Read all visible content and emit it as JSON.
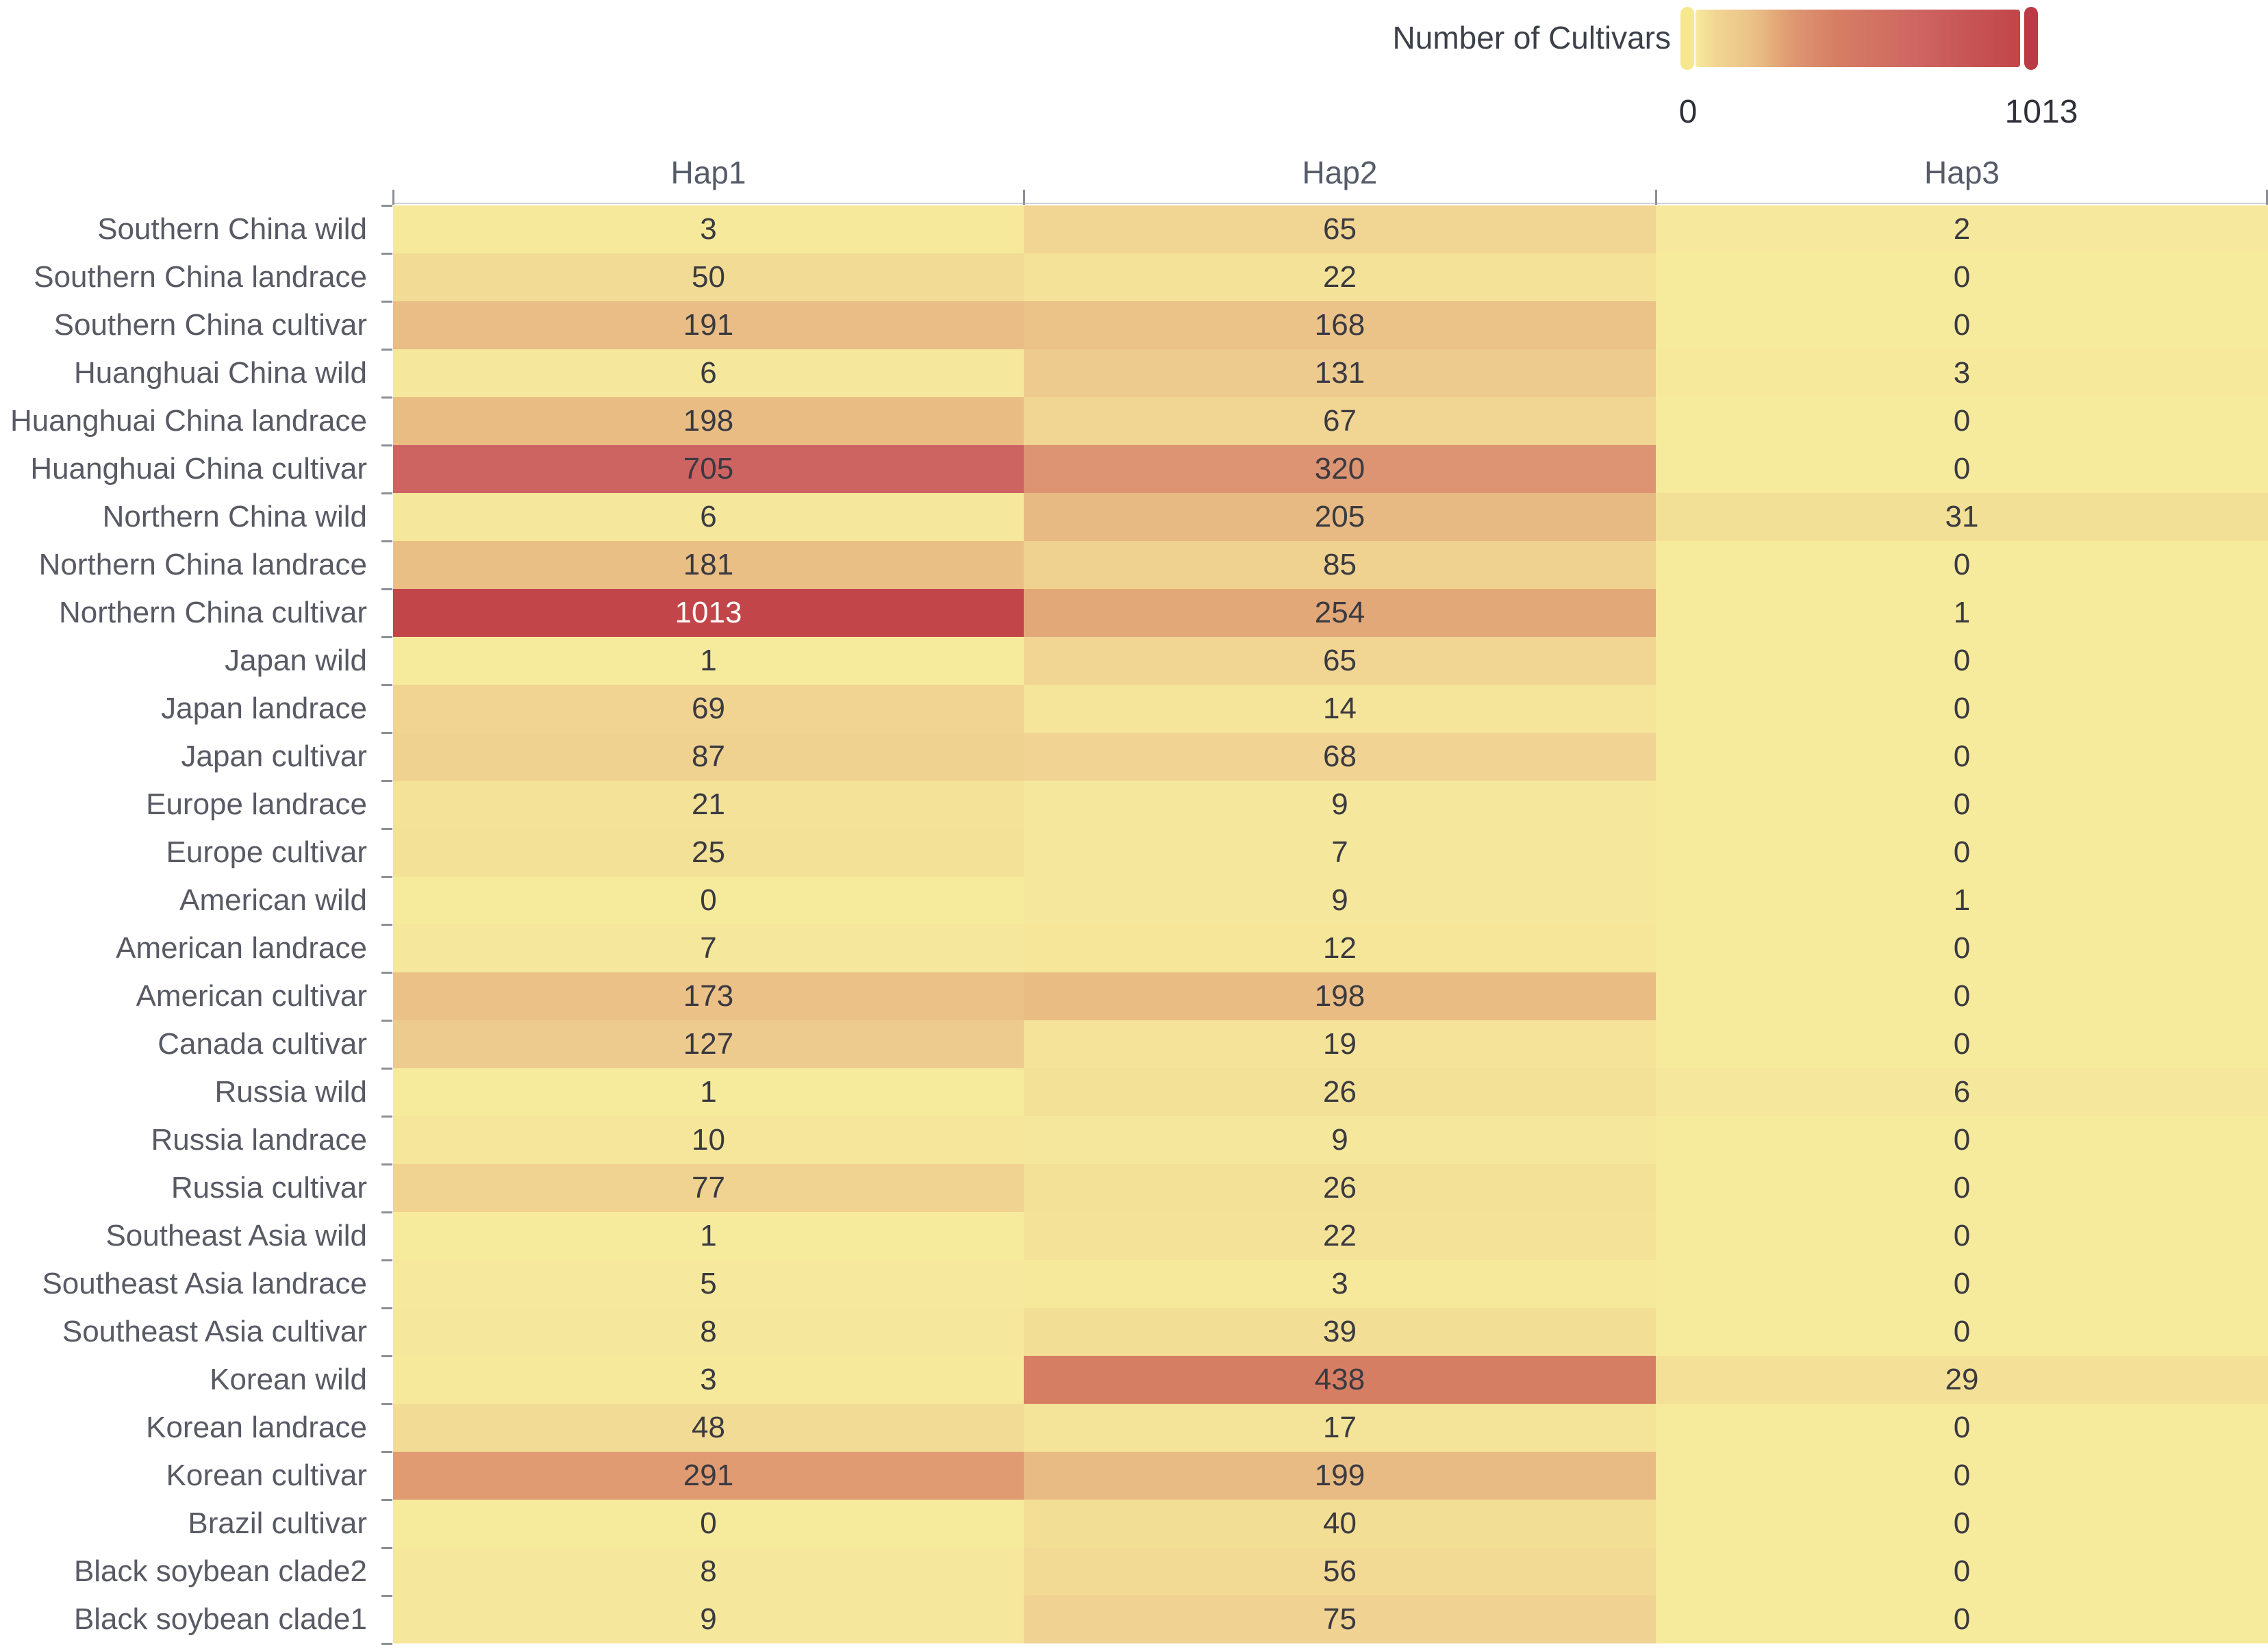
{
  "legend": {
    "title": "Number of Cultivars",
    "min_label": "0",
    "max_label": "1013"
  },
  "chart_data": {
    "type": "heatmap",
    "title": "Number of Cultivars",
    "columns": [
      "Hap1",
      "Hap2",
      "Hap3"
    ],
    "rows": [
      {
        "label": "Southern China wild",
        "values": [
          3,
          65,
          2
        ]
      },
      {
        "label": "Southern China landrace",
        "values": [
          50,
          22,
          0
        ]
      },
      {
        "label": "Southern China cultivar",
        "values": [
          191,
          168,
          0
        ]
      },
      {
        "label": "Huanghuai China wild",
        "values": [
          6,
          131,
          3
        ]
      },
      {
        "label": "Huanghuai China landrace",
        "values": [
          198,
          67,
          0
        ]
      },
      {
        "label": "Huanghuai China cultivar",
        "values": [
          705,
          320,
          0
        ]
      },
      {
        "label": "Northern China wild",
        "values": [
          6,
          205,
          31
        ]
      },
      {
        "label": "Northern China landrace",
        "values": [
          181,
          85,
          0
        ]
      },
      {
        "label": "Northern China cultivar",
        "values": [
          1013,
          254,
          1
        ]
      },
      {
        "label": "Japan wild",
        "values": [
          1,
          65,
          0
        ]
      },
      {
        "label": "Japan landrace",
        "values": [
          69,
          14,
          0
        ]
      },
      {
        "label": "Japan cultivar",
        "values": [
          87,
          68,
          0
        ]
      },
      {
        "label": "Europe landrace",
        "values": [
          21,
          9,
          0
        ]
      },
      {
        "label": "Europe cultivar",
        "values": [
          25,
          7,
          0
        ]
      },
      {
        "label": "American wild",
        "values": [
          0,
          9,
          1
        ]
      },
      {
        "label": "American landrace",
        "values": [
          7,
          12,
          0
        ]
      },
      {
        "label": "American cultivar",
        "values": [
          173,
          198,
          0
        ]
      },
      {
        "label": "Canada cultivar",
        "values": [
          127,
          19,
          0
        ]
      },
      {
        "label": "Russia wild",
        "values": [
          1,
          26,
          6
        ]
      },
      {
        "label": "Russia landrace",
        "values": [
          10,
          9,
          0
        ]
      },
      {
        "label": "Russia cultivar",
        "values": [
          77,
          26,
          0
        ]
      },
      {
        "label": "Southeast Asia wild",
        "values": [
          1,
          22,
          0
        ]
      },
      {
        "label": "Southeast Asia landrace",
        "values": [
          5,
          3,
          0
        ]
      },
      {
        "label": "Southeast Asia cultivar",
        "values": [
          8,
          39,
          0
        ]
      },
      {
        "label": "Korean wild",
        "values": [
          3,
          438,
          29
        ]
      },
      {
        "label": "Korean landrace",
        "values": [
          48,
          17,
          0
        ]
      },
      {
        "label": "Korean cultivar",
        "values": [
          291,
          199,
          0
        ]
      },
      {
        "label": "Brazil cultivar",
        "values": [
          0,
          40,
          0
        ]
      },
      {
        "label": "Black soybean clade2",
        "values": [
          8,
          56,
          0
        ]
      },
      {
        "label": "Black soybean clade1",
        "values": [
          9,
          75,
          0
        ]
      }
    ],
    "value_range": [
      0,
      1013
    ],
    "legend_position": "top-right",
    "grid": false,
    "colormap": [
      [
        0,
        "#F6EA9D"
      ],
      [
        22,
        "#F4E298"
      ],
      [
        50,
        "#F2DB95"
      ],
      [
        65,
        "#F1D593"
      ],
      [
        87,
        "#EFD190"
      ],
      [
        131,
        "#EDCA8E"
      ],
      [
        170,
        "#EBC288"
      ],
      [
        205,
        "#E8BA83"
      ],
      [
        254,
        "#E2A878"
      ],
      [
        291,
        "#E09B73"
      ],
      [
        320,
        "#DD9472"
      ],
      [
        438,
        "#D67E63"
      ],
      [
        705,
        "#CD6462"
      ],
      [
        1013,
        "#C14549"
      ]
    ]
  },
  "styles": {
    "cell_text_color": "#3a3a40",
    "cell_text_color_light": "#fdfbf7",
    "light_text_threshold": 900,
    "row_label_color": "#585a64",
    "column_header_color": "#565b68",
    "axis_line_color": "#d0d1d6",
    "tick_color": "#8d8f96",
    "legend_handle_low_color": "#F7E88F",
    "legend_handle_high_color": "#BB3B45",
    "background_color": "#ffffff"
  }
}
